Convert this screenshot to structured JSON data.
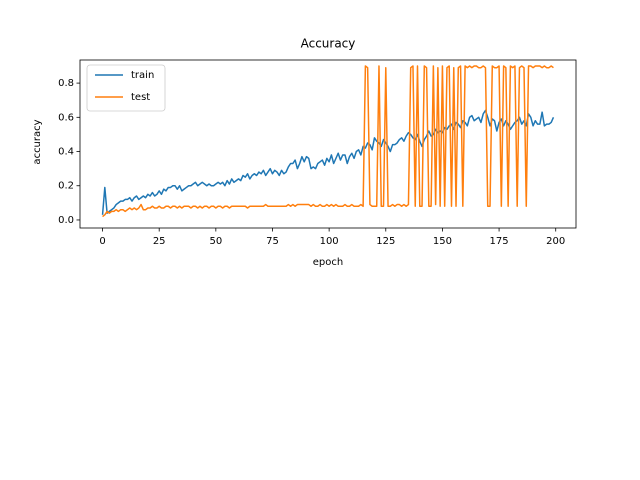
{
  "chart_data": {
    "type": "line",
    "title": "Accuracy",
    "x_label": "epoch",
    "y_label": "accuracy",
    "x": [
      0,
      1,
      2,
      3,
      4,
      5,
      6,
      7,
      8,
      9,
      10,
      11,
      12,
      13,
      14,
      15,
      16,
      17,
      18,
      19,
      20,
      21,
      22,
      23,
      24,
      25,
      26,
      27,
      28,
      29,
      30,
      31,
      32,
      33,
      34,
      35,
      36,
      37,
      38,
      39,
      40,
      41,
      42,
      43,
      44,
      45,
      46,
      47,
      48,
      49,
      50,
      51,
      52,
      53,
      54,
      55,
      56,
      57,
      58,
      59,
      60,
      61,
      62,
      63,
      64,
      65,
      66,
      67,
      68,
      69,
      70,
      71,
      72,
      73,
      74,
      75,
      76,
      77,
      78,
      79,
      80,
      81,
      82,
      83,
      84,
      85,
      86,
      87,
      88,
      89,
      90,
      91,
      92,
      93,
      94,
      95,
      96,
      97,
      98,
      99,
      100,
      101,
      102,
      103,
      104,
      105,
      106,
      107,
      108,
      109,
      110,
      111,
      112,
      113,
      114,
      115,
      116,
      117,
      118,
      119,
      120,
      121,
      122,
      123,
      124,
      125,
      126,
      127,
      128,
      129,
      130,
      131,
      132,
      133,
      134,
      135,
      136,
      137,
      138,
      139,
      140,
      141,
      142,
      143,
      144,
      145,
      146,
      147,
      148,
      149,
      150,
      151,
      152,
      153,
      154,
      155,
      156,
      157,
      158,
      159,
      160,
      161,
      162,
      163,
      164,
      165,
      166,
      167,
      168,
      169,
      170,
      171,
      172,
      173,
      174,
      175,
      176,
      177,
      178,
      179,
      180,
      181,
      182,
      183,
      184,
      185,
      186,
      187,
      188,
      189,
      190,
      191,
      192,
      193,
      194,
      195,
      196,
      197,
      198,
      199
    ],
    "series": [
      {
        "name": "train",
        "color": "#1f77b4",
        "values": [
          0.03,
          0.19,
          0.04,
          0.05,
          0.06,
          0.07,
          0.09,
          0.1,
          0.11,
          0.11,
          0.12,
          0.12,
          0.13,
          0.11,
          0.13,
          0.14,
          0.12,
          0.13,
          0.14,
          0.13,
          0.15,
          0.14,
          0.16,
          0.14,
          0.15,
          0.17,
          0.15,
          0.18,
          0.17,
          0.19,
          0.19,
          0.2,
          0.2,
          0.18,
          0.2,
          0.17,
          0.18,
          0.19,
          0.2,
          0.2,
          0.21,
          0.22,
          0.2,
          0.21,
          0.22,
          0.21,
          0.2,
          0.21,
          0.2,
          0.2,
          0.21,
          0.22,
          0.21,
          0.22,
          0.2,
          0.23,
          0.21,
          0.24,
          0.22,
          0.23,
          0.24,
          0.23,
          0.26,
          0.25,
          0.27,
          0.24,
          0.26,
          0.27,
          0.26,
          0.28,
          0.27,
          0.29,
          0.26,
          0.28,
          0.3,
          0.27,
          0.29,
          0.28,
          0.26,
          0.29,
          0.27,
          0.28,
          0.31,
          0.33,
          0.33,
          0.35,
          0.3,
          0.33,
          0.37,
          0.34,
          0.37,
          0.36,
          0.3,
          0.31,
          0.3,
          0.33,
          0.34,
          0.35,
          0.32,
          0.36,
          0.34,
          0.38,
          0.33,
          0.36,
          0.39,
          0.35,
          0.38,
          0.38,
          0.33,
          0.37,
          0.39,
          0.36,
          0.4,
          0.41,
          0.38,
          0.43,
          0.42,
          0.45,
          0.44,
          0.41,
          0.48,
          0.46,
          0.45,
          0.43,
          0.47,
          0.45,
          0.43,
          0.4,
          0.44,
          0.44,
          0.45,
          0.47,
          0.48,
          0.46,
          0.49,
          0.51,
          0.5,
          0.48,
          0.47,
          0.5,
          0.46,
          0.43,
          0.47,
          0.49,
          0.52,
          0.49,
          0.5,
          0.53,
          0.51,
          0.52,
          0.51,
          0.54,
          0.53,
          0.55,
          0.56,
          0.53,
          0.57,
          0.56,
          0.54,
          0.58,
          0.57,
          0.55,
          0.6,
          0.61,
          0.58,
          0.59,
          0.6,
          0.57,
          0.62,
          0.64,
          0.6,
          0.55,
          0.59,
          0.58,
          0.52,
          0.57,
          0.59,
          0.55,
          0.58,
          0.56,
          0.53,
          0.55,
          0.57,
          0.58,
          0.6,
          0.56,
          0.58,
          0.55,
          0.62,
          0.6,
          0.55,
          0.58,
          0.56,
          0.56,
          0.63,
          0.55,
          0.56,
          0.56,
          0.57,
          0.6
        ]
      },
      {
        "name": "test",
        "color": "#ff7f0e",
        "values": [
          0.02,
          0.03,
          0.05,
          0.04,
          0.05,
          0.05,
          0.06,
          0.05,
          0.06,
          0.06,
          0.05,
          0.06,
          0.07,
          0.06,
          0.07,
          0.06,
          0.07,
          0.09,
          0.06,
          0.06,
          0.07,
          0.07,
          0.08,
          0.07,
          0.07,
          0.08,
          0.07,
          0.07,
          0.08,
          0.08,
          0.07,
          0.08,
          0.08,
          0.07,
          0.08,
          0.07,
          0.08,
          0.08,
          0.08,
          0.07,
          0.08,
          0.08,
          0.07,
          0.08,
          0.07,
          0.08,
          0.08,
          0.07,
          0.08,
          0.08,
          0.07,
          0.08,
          0.08,
          0.07,
          0.08,
          0.08,
          0.07,
          0.08,
          0.08,
          0.08,
          0.08,
          0.08,
          0.08,
          0.08,
          0.07,
          0.08,
          0.08,
          0.08,
          0.08,
          0.08,
          0.08,
          0.08,
          0.09,
          0.08,
          0.08,
          0.08,
          0.08,
          0.08,
          0.08,
          0.08,
          0.08,
          0.08,
          0.09,
          0.08,
          0.09,
          0.08,
          0.09,
          0.09,
          0.09,
          0.09,
          0.09,
          0.09,
          0.08,
          0.09,
          0.08,
          0.08,
          0.09,
          0.08,
          0.08,
          0.09,
          0.08,
          0.09,
          0.08,
          0.09,
          0.08,
          0.08,
          0.08,
          0.09,
          0.08,
          0.08,
          0.09,
          0.08,
          0.08,
          0.08,
          0.09,
          0.08,
          0.9,
          0.89,
          0.09,
          0.08,
          0.08,
          0.08,
          0.9,
          0.08,
          0.08,
          0.89,
          0.08,
          0.08,
          0.09,
          0.08,
          0.09,
          0.09,
          0.08,
          0.09,
          0.08,
          0.09,
          0.89,
          0.9,
          0.08,
          0.9,
          0.08,
          0.08,
          0.9,
          0.89,
          0.08,
          0.08,
          0.9,
          0.09,
          0.89,
          0.08,
          0.9,
          0.08,
          0.89,
          0.9,
          0.08,
          0.89,
          0.08,
          0.89,
          0.9,
          0.08,
          0.9,
          0.89,
          0.9,
          0.89,
          0.9,
          0.9,
          0.89,
          0.89,
          0.9,
          0.89,
          0.08,
          0.08,
          0.9,
          0.89,
          0.89,
          0.9,
          0.08,
          0.9,
          0.89,
          0.08,
          0.9,
          0.89,
          0.9,
          0.08,
          0.89,
          0.9,
          0.89,
          0.08,
          0.9,
          0.9,
          0.89,
          0.9,
          0.9,
          0.9,
          0.89,
          0.9,
          0.89,
          0.89,
          0.9,
          0.89
        ]
      }
    ],
    "xlim": [
      -9.95,
      208.95
    ],
    "xticks": [
      0,
      25,
      50,
      75,
      100,
      125,
      150,
      175,
      200
    ],
    "ylim": [
      -0.047,
      0.935
    ],
    "yticks": [
      {
        "value": 0,
        "label": "0.0"
      },
      0.2,
      0.4,
      0.6,
      0.8
    ],
    "legend": "upper left"
  }
}
